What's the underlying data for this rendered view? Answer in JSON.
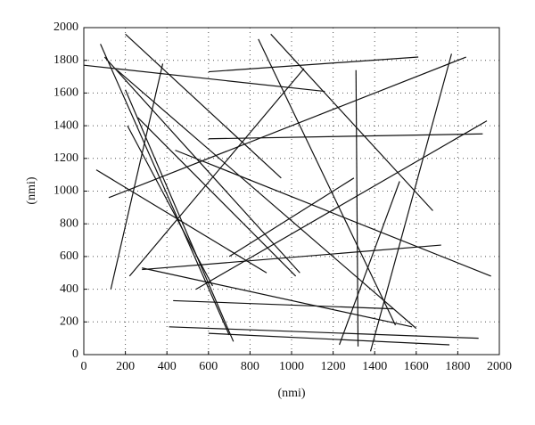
{
  "chart_data": {
    "type": "segments",
    "xlabel": "(nmi)",
    "ylabel": "(nmi)",
    "xlim": [
      0,
      2000
    ],
    "ylim": [
      0,
      2000
    ],
    "xticks": [
      0,
      200,
      400,
      600,
      800,
      1000,
      1200,
      1400,
      1600,
      1800,
      2000
    ],
    "yticks": [
      0,
      200,
      400,
      600,
      800,
      1000,
      1200,
      1400,
      1600,
      1800,
      2000
    ],
    "grid": true,
    "color": "#111111",
    "segments": [
      {
        "x": [
          0,
          1160
        ],
        "y": [
          1770,
          1610
        ]
      },
      {
        "x": [
          600,
          1610
        ],
        "y": [
          1730,
          1820
        ]
      },
      {
        "x": [
          60,
          880
        ],
        "y": [
          1130,
          500
        ]
      },
      {
        "x": [
          80,
          700
        ],
        "y": [
          1900,
          120
        ]
      },
      {
        "x": [
          200,
          720
        ],
        "y": [
          1620,
          80
        ]
      },
      {
        "x": [
          210,
          620
        ],
        "y": [
          1400,
          420
        ]
      },
      {
        "x": [
          200,
          950
        ],
        "y": [
          1960,
          1080
        ]
      },
      {
        "x": [
          100,
          1040
        ],
        "y": [
          1820,
          500
        ]
      },
      {
        "x": [
          130,
          380
        ],
        "y": [
          400,
          1780
        ]
      },
      {
        "x": [
          220,
          1060
        ],
        "y": [
          480,
          1750
        ]
      },
      {
        "x": [
          120,
          1840
        ],
        "y": [
          960,
          1820
        ]
      },
      {
        "x": [
          280,
          1720
        ],
        "y": [
          520,
          670
        ]
      },
      {
        "x": [
          280,
          1580
        ],
        "y": [
          530,
          170
        ]
      },
      {
        "x": [
          430,
          1490
        ],
        "y": [
          330,
          280
        ]
      },
      {
        "x": [
          410,
          1900
        ],
        "y": [
          170,
          100
        ]
      },
      {
        "x": [
          600,
          1760
        ],
        "y": [
          130,
          60
        ]
      },
      {
        "x": [
          600,
          1920
        ],
        "y": [
          1320,
          1350
        ]
      },
      {
        "x": [
          1310,
          1320
        ],
        "y": [
          1740,
          50
        ]
      },
      {
        "x": [
          1230,
          1520
        ],
        "y": [
          60,
          1060
        ]
      },
      {
        "x": [
          1380,
          1770
        ],
        "y": [
          20,
          1840
        ]
      },
      {
        "x": [
          540,
          1940
        ],
        "y": [
          400,
          1430
        ]
      },
      {
        "x": [
          700,
          1300
        ],
        "y": [
          600,
          1080
        ]
      },
      {
        "x": [
          840,
          1500
        ],
        "y": [
          1930,
          180
        ]
      },
      {
        "x": [
          900,
          1680
        ],
        "y": [
          1960,
          880
        ]
      },
      {
        "x": [
          440,
          1960
        ],
        "y": [
          1250,
          480
        ]
      },
      {
        "x": [
          260,
          1020
        ],
        "y": [
          1450,
          480
        ]
      },
      {
        "x": [
          160,
          1600
        ],
        "y": [
          1740,
          160
        ]
      }
    ]
  }
}
